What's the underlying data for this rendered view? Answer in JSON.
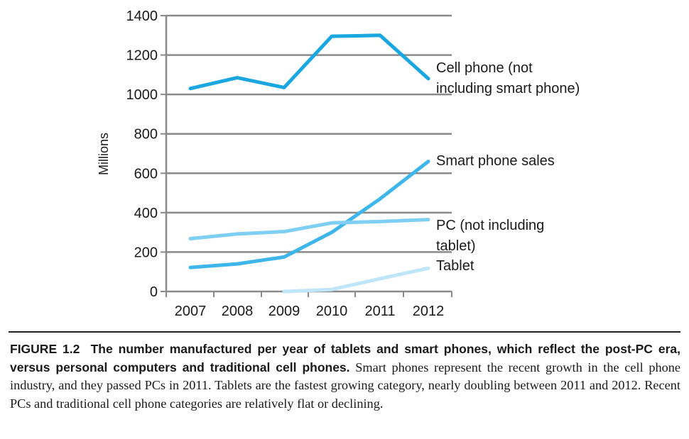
{
  "chart_data": {
    "type": "line",
    "ylabel": "Millions",
    "ylim": [
      0,
      1400
    ],
    "yticks": [
      0,
      200,
      400,
      600,
      800,
      1000,
      1200,
      1400
    ],
    "categories": [
      "2007",
      "2008",
      "2009",
      "2010",
      "2011",
      "2012"
    ],
    "grid": true,
    "series": [
      {
        "name": "Cell phone (not including smart phone)",
        "label_lines": [
          "Cell phone (not",
          "including smart phone)"
        ],
        "color": "#1aa7e0",
        "values": [
          1030,
          1085,
          1035,
          1295,
          1300,
          1080
        ]
      },
      {
        "name": "Smart phone sales",
        "label_lines": [
          "Smart phone sales"
        ],
        "color": "#3fb6ea",
        "values": [
          122,
          140,
          175,
          300,
          470,
          660
        ]
      },
      {
        "name": "PC (not including tablet)",
        "label_lines": [
          "PC (not including",
          "tablet)"
        ],
        "color": "#7fcff2",
        "values": [
          268,
          292,
          304,
          348,
          355,
          365
        ]
      },
      {
        "name": "Tablet",
        "label_lines": [
          "Tablet"
        ],
        "color": "#bfe6f8",
        "values": [
          null,
          null,
          0,
          10,
          65,
          118
        ]
      }
    ]
  },
  "caption": {
    "figure_label": "FIGURE 1.2",
    "bold_text": "The number manufactured per year of tablets and smart phones, which reflect the post-PC era, versus personal computers and traditional cell phones.",
    "body_text": "Smart phones represent the recent growth in the cell phone industry, and they passed PCs in 2011. Tablets are the fastest growing category, nearly doubling between 2011 and 2012. Recent PCs and traditional cell phone categories are relatively flat or declining."
  }
}
